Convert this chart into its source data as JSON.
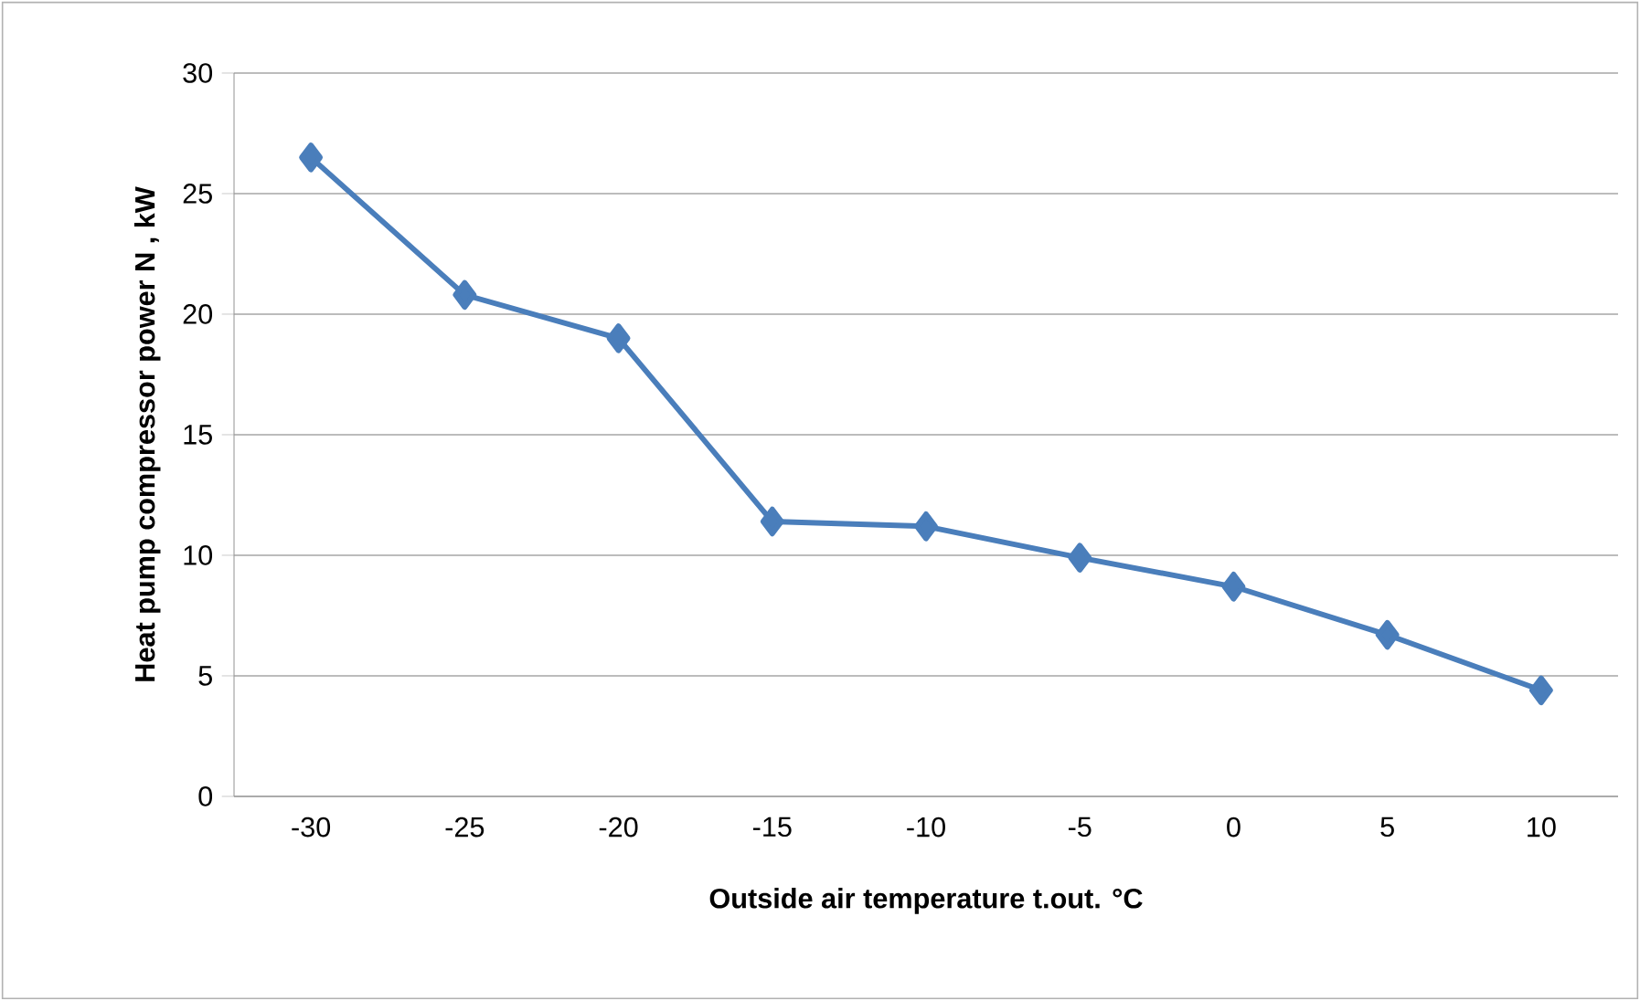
{
  "chart_data": {
    "type": "line",
    "xlabel": "Outside air temperature t.out. °C",
    "ylabel": "Heat pump compressor power N , kW",
    "categories": [
      "-30",
      "-25",
      "-20",
      "-15",
      "-10",
      "-5",
      "0",
      "5",
      "10"
    ],
    "values": [
      26.5,
      20.8,
      19.0,
      11.4,
      11.2,
      9.9,
      8.7,
      6.7,
      4.4
    ],
    "color": "#4a7ebb",
    "marker": "diamond",
    "line_style": "solid",
    "ylim": [
      0,
      30
    ],
    "yticks": [
      0,
      5,
      10,
      15,
      20,
      25,
      30
    ],
    "grid": "y"
  }
}
